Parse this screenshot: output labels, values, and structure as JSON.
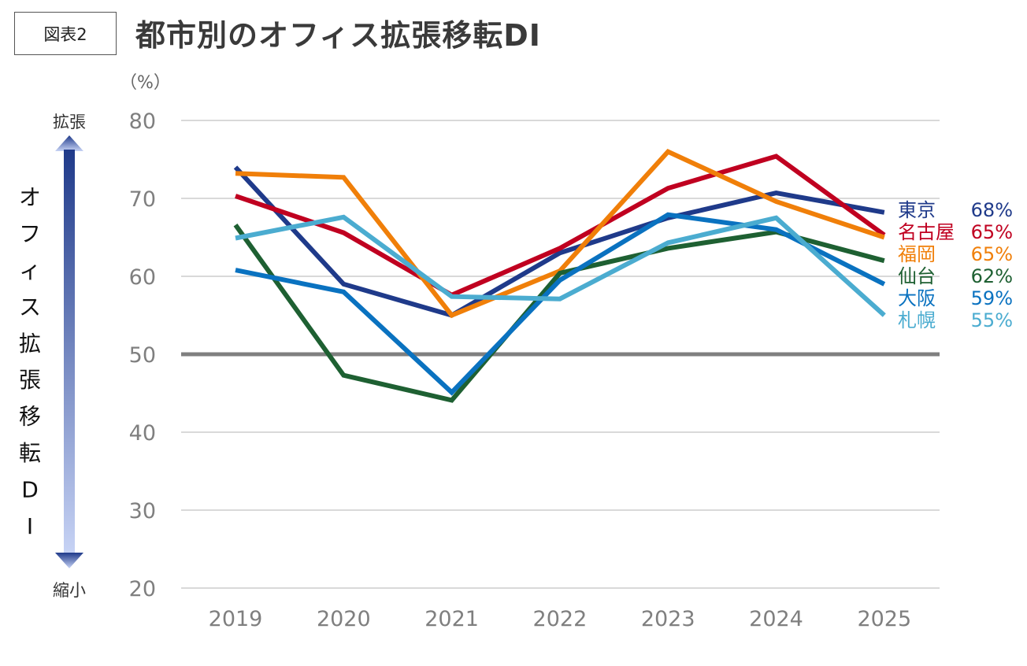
{
  "header": {
    "badge": "図表2",
    "title": "都市別のオフィス拡張移転DI"
  },
  "colors": {
    "grid": "#d9d9d9",
    "baseline": "#7f7f7f",
    "arrow_top": "#1f3a8a",
    "arrow_bottom": "#c7d3f5"
  },
  "chart_data": {
    "type": "line",
    "x": [
      "2019",
      "2020",
      "2021",
      "2022",
      "2023",
      "2024",
      "2025"
    ],
    "ylabel": "（%）",
    "ylim": [
      20,
      80
    ],
    "yticks": [
      20,
      30,
      40,
      50,
      60,
      70,
      80
    ],
    "reference_line": 50,
    "grid": true,
    "y_arrow": {
      "top_label": "拡張",
      "bottom_label": "縮小",
      "axis_title": "オフィス拡張移転DI"
    },
    "series": [
      {
        "name": "東京",
        "color": "#1f3a8a",
        "values": [
          74,
          59,
          55,
          63,
          67.5,
          70.7,
          68.2
        ],
        "end_label": "68%"
      },
      {
        "name": "名古屋",
        "color": "#c00020",
        "values": [
          70.3,
          65.6,
          57.6,
          63.6,
          71.3,
          75.4,
          65.3
        ],
        "end_label": "65%"
      },
      {
        "name": "福岡",
        "color": "#f07f09",
        "values": [
          73.2,
          72.7,
          55,
          60.7,
          76,
          69.6,
          65
        ],
        "end_label": "65%"
      },
      {
        "name": "仙台",
        "color": "#1e6032",
        "values": [
          66.6,
          47.3,
          44.1,
          60.4,
          63.6,
          65.7,
          62
        ],
        "end_label": "62%"
      },
      {
        "name": "大阪",
        "color": "#0a72c0",
        "values": [
          60.8,
          58,
          45.1,
          59.5,
          67.9,
          66,
          59
        ],
        "end_label": "59%"
      },
      {
        "name": "札幌",
        "color": "#4bacd0",
        "values": [
          64.9,
          67.6,
          57.4,
          57.1,
          64.3,
          67.5,
          55
        ],
        "end_label": "55%"
      }
    ]
  }
}
